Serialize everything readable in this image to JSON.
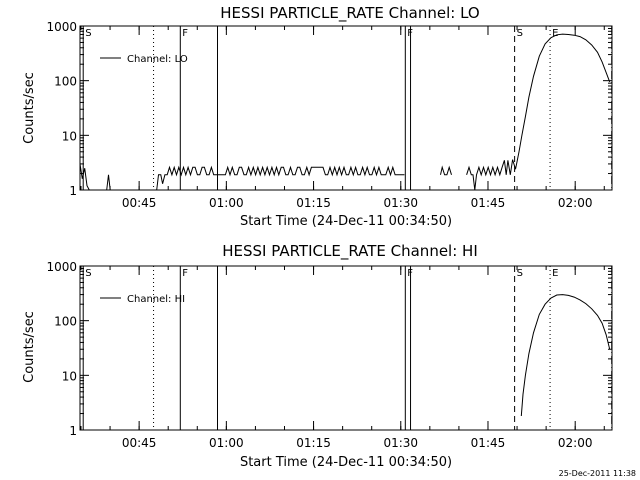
{
  "footer": {
    "timestamp": "25-Dec-2011 11:38"
  },
  "chart_data": [
    {
      "type": "line",
      "title": "HESSI PARTICLE_RATE Channel: LO",
      "xlabel": "Start Time (24-Dec-11 00:34:50)",
      "ylabel": "Counts/sec",
      "yscale": "log",
      "ylim": [
        1,
        1000
      ],
      "xlim_minutes": [
        0.0,
        91.5
      ],
      "xticks": [
        {
          "t": 10.17,
          "label": "00:45"
        },
        {
          "t": 25.17,
          "label": "01:00"
        },
        {
          "t": 40.17,
          "label": "01:15"
        },
        {
          "t": 55.17,
          "label": "01:30"
        },
        {
          "t": 70.17,
          "label": "01:45"
        },
        {
          "t": 85.17,
          "label": "02:00"
        }
      ],
      "yticks": [
        {
          "v": 1,
          "label": "1"
        },
        {
          "v": 10,
          "label": "10"
        },
        {
          "v": 100,
          "label": "100"
        },
        {
          "v": 1000,
          "label": "1000"
        }
      ],
      "legend": {
        "label": "Channel: LO",
        "position": "top-left"
      },
      "grid": false,
      "markers": [
        {
          "t": 0.55,
          "style": "solid",
          "flag": "S"
        },
        {
          "t": 12.65,
          "style": "dotted",
          "flag": ""
        },
        {
          "t": 17.25,
          "style": "solid",
          "flag": "F"
        },
        {
          "t": 23.65,
          "style": "solid",
          "flag": ""
        },
        {
          "t": 55.95,
          "style": "solid",
          "flag": "F"
        },
        {
          "t": 56.85,
          "style": "solid",
          "flag": ""
        },
        {
          "t": 74.75,
          "style": "dashed",
          "flag": "S"
        },
        {
          "t": 80.85,
          "style": "dotted",
          "flag": "E"
        },
        {
          "t": 91.45,
          "style": "dashdot",
          "flag": ""
        }
      ],
      "series": [
        {
          "values": [
            [
              0.0,
              3.0
            ],
            [
              0.4,
              1.6
            ],
            [
              0.8,
              2.5
            ],
            [
              1.2,
              1.2
            ],
            [
              1.6,
              1.0
            ],
            [
              4.6,
              1.0
            ],
            [
              4.9,
              1.9
            ],
            [
              5.2,
              1.0
            ],
            [
              13.2,
              1.0
            ],
            [
              13.5,
              1.9
            ],
            [
              13.9,
              1.9
            ],
            [
              14.2,
              1.3
            ],
            [
              14.6,
              1.9
            ],
            [
              15.0,
              1.9
            ],
            [
              15.4,
              2.6
            ],
            [
              15.8,
              1.9
            ],
            [
              16.2,
              2.6
            ],
            [
              16.6,
              1.9
            ],
            [
              17.0,
              2.6
            ],
            [
              17.4,
              1.9
            ],
            [
              17.8,
              2.6
            ],
            [
              18.2,
              1.9
            ],
            [
              18.6,
              2.6
            ],
            [
              19.0,
              1.9
            ],
            [
              19.4,
              2.6
            ],
            [
              19.8,
              2.6
            ],
            [
              20.2,
              1.9
            ],
            [
              20.6,
              1.9
            ],
            [
              21.0,
              2.6
            ],
            [
              21.4,
              2.6
            ],
            [
              21.8,
              1.9
            ],
            [
              22.2,
              1.9
            ],
            [
              22.6,
              2.6
            ],
            [
              23.0,
              1.9
            ],
            [
              23.4,
              1.9
            ],
            [
              23.8,
              1.9
            ],
            [
              24.2,
              1.9
            ],
            [
              24.6,
              1.9
            ],
            [
              25.0,
              1.9
            ],
            [
              25.4,
              2.6
            ],
            [
              25.8,
              1.9
            ],
            [
              26.2,
              2.6
            ],
            [
              26.6,
              1.9
            ],
            [
              27.0,
              1.9
            ],
            [
              27.4,
              2.6
            ],
            [
              27.8,
              2.6
            ],
            [
              28.2,
              1.9
            ],
            [
              28.6,
              1.9
            ],
            [
              29.0,
              2.6
            ],
            [
              29.4,
              1.9
            ],
            [
              29.8,
              2.6
            ],
            [
              30.2,
              1.9
            ],
            [
              30.6,
              2.6
            ],
            [
              31.0,
              1.9
            ],
            [
              31.4,
              2.6
            ],
            [
              31.8,
              1.9
            ],
            [
              32.2,
              2.6
            ],
            [
              32.6,
              1.9
            ],
            [
              33.0,
              2.6
            ],
            [
              33.4,
              1.9
            ],
            [
              33.8,
              2.6
            ],
            [
              34.2,
              1.9
            ],
            [
              34.6,
              2.6
            ],
            [
              35.0,
              2.6
            ],
            [
              35.4,
              1.9
            ],
            [
              35.8,
              1.9
            ],
            [
              36.2,
              2.6
            ],
            [
              36.6,
              1.9
            ],
            [
              37.0,
              1.9
            ],
            [
              37.4,
              2.6
            ],
            [
              37.8,
              2.6
            ],
            [
              38.2,
              1.9
            ],
            [
              38.6,
              1.9
            ],
            [
              39.0,
              2.6
            ],
            [
              39.4,
              1.9
            ],
            [
              39.8,
              2.6
            ],
            [
              40.2,
              2.6
            ],
            [
              40.6,
              2.6
            ],
            [
              41.0,
              2.6
            ],
            [
              41.4,
              2.6
            ],
            [
              41.8,
              2.6
            ],
            [
              42.2,
              1.9
            ],
            [
              42.6,
              1.9
            ],
            [
              43.0,
              2.6
            ],
            [
              43.4,
              1.9
            ],
            [
              43.8,
              2.6
            ],
            [
              44.2,
              1.9
            ],
            [
              44.6,
              2.6
            ],
            [
              45.0,
              1.9
            ],
            [
              45.4,
              2.6
            ],
            [
              45.8,
              1.9
            ],
            [
              46.2,
              1.9
            ],
            [
              46.6,
              2.6
            ],
            [
              47.0,
              1.9
            ],
            [
              47.4,
              2.6
            ],
            [
              47.8,
              1.9
            ],
            [
              48.2,
              1.9
            ],
            [
              48.6,
              2.6
            ],
            [
              49.0,
              1.9
            ],
            [
              49.4,
              2.6
            ],
            [
              49.8,
              1.9
            ],
            [
              50.2,
              1.9
            ],
            [
              50.6,
              2.6
            ],
            [
              51.0,
              1.9
            ],
            [
              51.4,
              2.6
            ],
            [
              51.8,
              1.9
            ],
            [
              52.2,
              1.9
            ],
            [
              52.6,
              1.9
            ],
            [
              53.0,
              2.6
            ],
            [
              53.4,
              1.9
            ],
            [
              53.8,
              2.6
            ],
            [
              54.2,
              1.9
            ],
            [
              54.6,
              1.9
            ],
            [
              55.0,
              1.9
            ],
            [
              55.4,
              1.9
            ],
            [
              55.8,
              1.9
            ],
            [
              62.0,
              1.9
            ],
            [
              62.3,
              2.6
            ],
            [
              62.7,
              1.9
            ],
            [
              63.1,
              1.9
            ],
            [
              63.5,
              2.6
            ],
            [
              63.9,
              1.9
            ],
            [
              66.5,
              1.9
            ],
            [
              66.9,
              2.6
            ],
            [
              67.3,
              1.9
            ],
            [
              67.6,
              1.9
            ],
            [
              67.9,
              1.0
            ],
            [
              68.2,
              1.9
            ],
            [
              68.6,
              2.6
            ],
            [
              69.0,
              1.9
            ],
            [
              69.4,
              2.6
            ],
            [
              69.8,
              1.9
            ],
            [
              70.2,
              2.6
            ],
            [
              70.6,
              1.9
            ],
            [
              71.0,
              2.6
            ],
            [
              71.4,
              1.9
            ],
            [
              71.8,
              2.6
            ],
            [
              72.2,
              1.9
            ],
            [
              72.6,
              2.6
            ],
            [
              73.0,
              3.5
            ],
            [
              73.3,
              1.9
            ],
            [
              73.6,
              3.5
            ],
            [
              74.0,
              1.9
            ],
            [
              74.4,
              3.6
            ],
            [
              74.9,
              2.4
            ],
            [
              75.2,
              3.4
            ],
            [
              75.5,
              5.0
            ],
            [
              76.0,
              10
            ],
            [
              76.6,
              22
            ],
            [
              77.2,
              50
            ],
            [
              78.0,
              120
            ],
            [
              79.0,
              280
            ],
            [
              80.0,
              470
            ],
            [
              81.0,
              610
            ],
            [
              82.0,
              690
            ],
            [
              83.0,
              710
            ],
            [
              84.0,
              700
            ],
            [
              85.0,
              680
            ],
            [
              86.0,
              640
            ],
            [
              87.0,
              560
            ],
            [
              88.0,
              450
            ],
            [
              89.0,
              330
            ],
            [
              89.8,
              220
            ],
            [
              90.5,
              140
            ],
            [
              91.1,
              95
            ]
          ]
        }
      ]
    },
    {
      "type": "line",
      "title": "HESSI PARTICLE_RATE Channel: HI",
      "xlabel": "Start Time (24-Dec-11 00:34:50)",
      "ylabel": "Counts/sec",
      "yscale": "log",
      "ylim": [
        1,
        1000
      ],
      "xlim_minutes": [
        0.0,
        91.5
      ],
      "xticks": [
        {
          "t": 10.17,
          "label": "00:45"
        },
        {
          "t": 25.17,
          "label": "01:00"
        },
        {
          "t": 40.17,
          "label": "01:15"
        },
        {
          "t": 55.17,
          "label": "01:30"
        },
        {
          "t": 70.17,
          "label": "01:45"
        },
        {
          "t": 85.17,
          "label": "02:00"
        }
      ],
      "yticks": [
        {
          "v": 1,
          "label": "1"
        },
        {
          "v": 10,
          "label": "10"
        },
        {
          "v": 100,
          "label": "100"
        },
        {
          "v": 1000,
          "label": "1000"
        }
      ],
      "legend": {
        "label": "Channel: HI",
        "position": "top-left"
      },
      "grid": false,
      "markers": [
        {
          "t": 0.55,
          "style": "solid",
          "flag": "S"
        },
        {
          "t": 12.65,
          "style": "dotted",
          "flag": ""
        },
        {
          "t": 17.25,
          "style": "solid",
          "flag": "F"
        },
        {
          "t": 23.65,
          "style": "solid",
          "flag": ""
        },
        {
          "t": 55.95,
          "style": "solid",
          "flag": "F"
        },
        {
          "t": 56.85,
          "style": "solid",
          "flag": ""
        },
        {
          "t": 74.75,
          "style": "dashed",
          "flag": "S"
        },
        {
          "t": 80.85,
          "style": "dotted",
          "flag": "E"
        },
        {
          "t": 91.45,
          "style": "dashdot",
          "flag": ""
        }
      ],
      "series": [
        {
          "values": [
            [
              75.9,
              1.8
            ],
            [
              76.2,
              4.5
            ],
            [
              76.6,
              10
            ],
            [
              77.2,
              25
            ],
            [
              78.0,
              60
            ],
            [
              79.0,
              130
            ],
            [
              80.0,
              200
            ],
            [
              81.0,
              260
            ],
            [
              82.0,
              295
            ],
            [
              83.0,
              300
            ],
            [
              84.0,
              290
            ],
            [
              85.0,
              270
            ],
            [
              86.0,
              240
            ],
            [
              87.0,
              205
            ],
            [
              88.0,
              165
            ],
            [
              89.0,
              125
            ],
            [
              89.8,
              90
            ],
            [
              90.5,
              55
            ],
            [
              91.1,
              30
            ]
          ]
        }
      ]
    }
  ]
}
